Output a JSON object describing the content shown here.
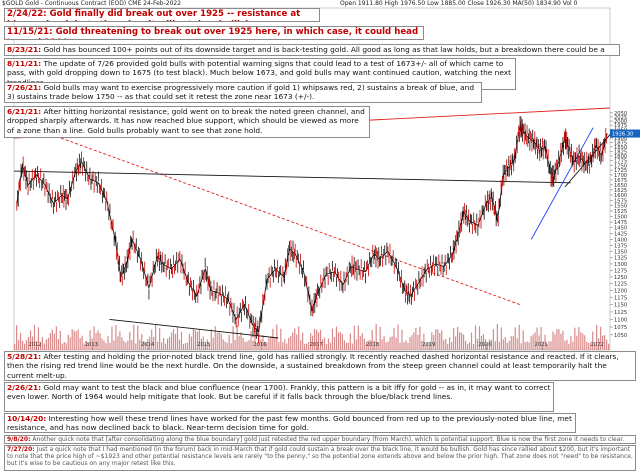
{
  "header": {
    "symbol": "$GOLD",
    "description": "Gold - Continuous Contract (EOD) CME",
    "date": "24-Feb-2022",
    "ohlc": "Open 1911.80  High 1976.50  Low 1885.00  Close 1926.30",
    "ma": "MA(50) 1834.90",
    "volume": "Vol 0"
  },
  "notes": [
    {
      "date": "2/24/22:",
      "text": "Gold finally did break out over 1925 -- resistance at blue and red, but otherwise, it will retain a bullish appearance as long as ~1750 holds."
    },
    {
      "date": "11/15/21:",
      "text": "Gold threatening to break out over 1925 here, in which case, it could head toward 2100+."
    },
    {
      "date": "8/23/21:",
      "text": "Gold has bounced 100+ points out of its downside target and is back-testing gold. All good as long as that law holds, but a breakdown there could be a big warning."
    },
    {
      "date": "8/11/21:",
      "text": "The update of 7/26 provided gold bulls with potential warning signs that could lead to a test of 1673+/- all of which came to pass, with gold dropping down to 1675 (to test black). Much below 1673, and gold bulls may want continued caution, watching the next trendlines."
    },
    {
      "date": "7/26/21:",
      "text": "Gold bulls may want to exercise progressively more caution if gold 1) whipsaws red, 2) sustains a break of blue, and 3) sustains trade below 1750 -- as that could set it retest the zone near 1673 (+/-)."
    },
    {
      "date": "6/21/21:",
      "text": "After hitting horizontal resistance, gold went on to break the noted green channel, and dropped sharply afterwards. It has now reached blue support, which should be viewed as more of a zone than a line. Gold bulls probably want to see that zone hold."
    },
    {
      "date": "5/28/21:",
      "text": "After testing and holding the prior-noted black trend line, gold has rallied strongly. It recently reached dashed horizontal resistance and reacted. If it clears, then the rising red trend line would be the next hurdle. On the downside, a sustained breakdown from the steep green channel could at least temporarily halt the current melt-up."
    },
    {
      "date": "2/26/21:",
      "text": "Gold may want to test the black and blue confluence (near 1700). Frankly, this pattern is a bit iffy for gold -- as in, it may want to correct even lower. North of 1964 would help mitigate that look. But be careful if it falls back through the blue/black trend lines."
    },
    {
      "date": "10/14/20:",
      "text": "Interesting how well these trend lines have worked for the past few months. Gold bounced from red up to the previously-noted blue line, met resistance, and has now declined back to black. Near-term decision time for gold."
    },
    {
      "date": "9/8/20:",
      "text": "Another quick note that [after consolidating along the blue boundary] gold just retested the red upper boundary (from March), which is potential support. Blue is now the first zone it needs to clear."
    },
    {
      "date": "7/27/20:",
      "text": "Just a quick note that I had mentioned (in the forum) back in mid-March that if gold could sustain a break over the black line, it would be bullish. Gold has since rallied about $200, but it's important to note that the price high of ~$1923 and other potential resistance levels are rarely \"to the penny,\" so the potential zone extends above and below the prior high. That zone does not \"need\" to be resistance, but it's wise to be cautious on any major retest like this."
    }
  ],
  "chart_data": {
    "type": "line",
    "title": "$GOLD",
    "y_axis": {
      "ticks": [
        "2050",
        "2025",
        "2000",
        "1975",
        "1950",
        "1925",
        "1900",
        "1875",
        "1850",
        "1825",
        "1800",
        "1775",
        "1750",
        "1725",
        "1700",
        "1675",
        "1650",
        "1625",
        "1600",
        "1575",
        "1550",
        "1525",
        "1500",
        "1475",
        "1450",
        "1425",
        "1400",
        "1375",
        "1350",
        "1325",
        "1300",
        "1275",
        "1250",
        "1225",
        "1200",
        "1175",
        "1150",
        "1125",
        "1100",
        "1075",
        "1050"
      ],
      "log_scale": true,
      "range": [
        1040,
        2080
      ]
    },
    "x_axis": {
      "ticks": [
        "2012",
        "2013",
        "2014",
        "2015",
        "2016",
        "2017",
        "2018",
        "2019",
        "2020",
        "2021",
        "2022"
      ],
      "range": [
        2011.6,
        2022.2
      ]
    },
    "last_price_label": "1926.30",
    "series": [
      {
        "name": "",
        "x": [
          2011.65,
          2011.75,
          2011.85,
          2012.0,
          2012.15,
          2012.3,
          2012.45,
          2012.55,
          2012.7,
          2012.8,
          2012.95,
          2013.1,
          2013.25,
          2013.4,
          2013.5,
          2013.6,
          2013.7,
          2013.85,
          2014.0,
          2014.15,
          2014.25,
          2014.4,
          2014.55,
          2014.7,
          2014.85,
          2015.0,
          2015.1,
          2015.25,
          2015.4,
          2015.55,
          2015.7,
          2015.85,
          2015.95,
          2016.1,
          2016.25,
          2016.4,
          2016.5,
          2016.6,
          2016.75,
          2016.9,
          2017.0,
          2017.15,
          2017.3,
          2017.45,
          2017.6,
          2017.7,
          2017.85,
          2018.0,
          2018.1,
          2018.25,
          2018.4,
          2018.55,
          2018.65,
          2018.8,
          2018.95,
          2019.1,
          2019.25,
          2019.4,
          2019.5,
          2019.6,
          2019.7,
          2019.85,
          2020.0,
          2020.1,
          2020.2,
          2020.3,
          2020.4,
          2020.5,
          2020.6,
          2020.65,
          2020.75,
          2020.85,
          2020.95,
          2021.05,
          2021.15,
          2021.2,
          2021.3,
          2021.4,
          2021.45,
          2021.55,
          2021.65,
          2021.75,
          2021.85,
          2021.95,
          2022.05,
          2022.15
        ],
        "y": [
          1550,
          1750,
          1650,
          1700,
          1650,
          1560,
          1600,
          1580,
          1720,
          1770,
          1680,
          1660,
          1570,
          1400,
          1250,
          1300,
          1400,
          1320,
          1210,
          1330,
          1300,
          1280,
          1320,
          1230,
          1180,
          1280,
          1200,
          1190,
          1170,
          1100,
          1150,
          1080,
          1060,
          1240,
          1280,
          1250,
          1360,
          1340,
          1270,
          1130,
          1190,
          1260,
          1270,
          1220,
          1290,
          1280,
          1270,
          1340,
          1320,
          1350,
          1290,
          1200,
          1180,
          1230,
          1280,
          1300,
          1290,
          1340,
          1420,
          1520,
          1480,
          1460,
          1560,
          1590,
          1480,
          1700,
          1740,
          1780,
          1970,
          1940,
          1900,
          1880,
          1830,
          1850,
          1700,
          1690,
          1780,
          1900,
          1860,
          1770,
          1800,
          1760,
          1770,
          1860,
          1800,
          1926
        ]
      }
    ],
    "trend_lines": [
      {
        "name": "red rising",
        "color": "#e02020",
        "style": "solid"
      },
      {
        "name": "red falling dashed",
        "color": "#e02020",
        "style": "dashed"
      },
      {
        "name": "black falling",
        "color": "#111111",
        "style": "solid"
      },
      {
        "name": "blue",
        "color": "#2040ff",
        "style": "solid"
      },
      {
        "name": "black rising",
        "color": "#111111",
        "style": "solid"
      }
    ],
    "grid": false,
    "volume_bars": true
  }
}
